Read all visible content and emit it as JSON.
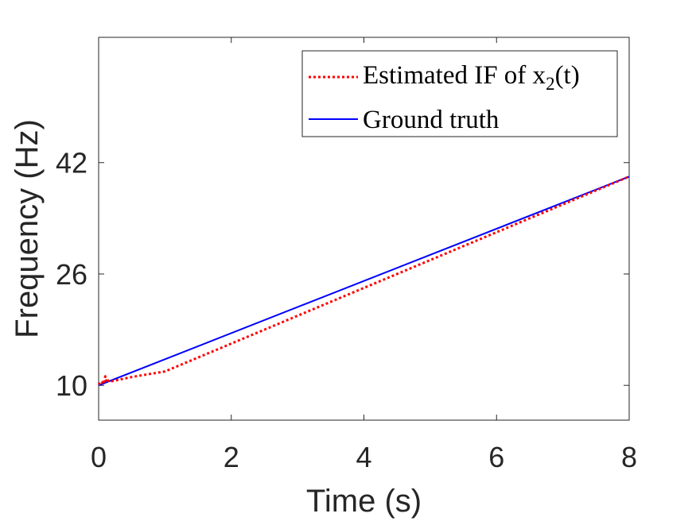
{
  "chart_data": {
    "type": "line",
    "title": "",
    "xlabel": "Time (s)",
    "ylabel": "Frequency (Hz)",
    "xlim": [
      0,
      8
    ],
    "ylim": [
      5,
      60
    ],
    "xticks": [
      0,
      2,
      4,
      6,
      8
    ],
    "yticks": [
      10,
      26,
      42
    ],
    "xtick_labels": [
      "0",
      "2",
      "4",
      "6",
      "8"
    ],
    "ytick_labels": [
      "10",
      "26",
      "42"
    ],
    "grid": false,
    "legend_position": "top-right",
    "legend": {
      "estimated_prefix": "Estimated IF of x",
      "estimated_sub": "2",
      "estimated_suffix": "(t)",
      "ground_truth": "Ground truth"
    },
    "colors": {
      "estimated": "#ff0000",
      "ground_truth": "#0000ff",
      "axis": "#262626"
    },
    "series": [
      {
        "key": "estimated",
        "style": "dotted",
        "x": [
          0,
          0.04,
          0.08,
          0.1,
          0.12,
          0.16,
          0.2,
          0.5,
          1,
          2,
          3,
          4,
          5,
          6,
          7,
          8
        ],
        "y": [
          10.1,
          10.6,
          10.2,
          11.3,
          10.4,
          10.8,
          10.6,
          11.2,
          12,
          16,
          20,
          24,
          28,
          32,
          36,
          40
        ]
      },
      {
        "key": "ground_truth",
        "style": "solid",
        "x": [
          0,
          8
        ],
        "y": [
          10,
          40
        ]
      }
    ]
  }
}
